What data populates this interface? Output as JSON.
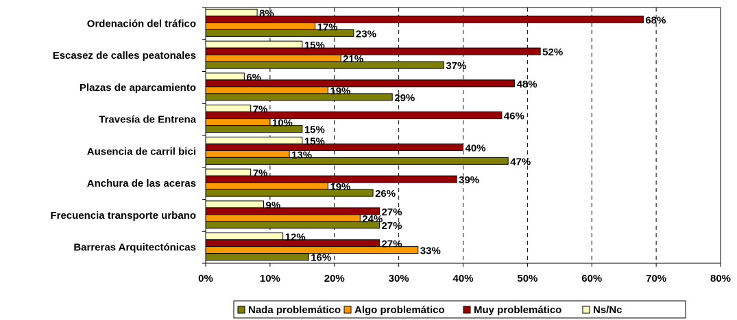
{
  "chart_data": {
    "type": "bar",
    "orientation": "horizontal",
    "categories": [
      "Ordenación del tráfico",
      "Escasez de calles peatonales",
      "Plazas de aparcamiento",
      "Travesía de Entrena",
      "Ausencia de carril bici",
      "Anchura de las aceras",
      "Frecuencia transporte urbano",
      "Barreras Arquitectónicas"
    ],
    "series": [
      {
        "name": "Ns/Nc",
        "color": "#FFFFC0",
        "values": [
          8,
          15,
          6,
          7,
          15,
          7,
          9,
          12
        ]
      },
      {
        "name": "Muy problemático",
        "color": "#990000",
        "values": [
          68,
          52,
          48,
          46,
          40,
          39,
          27,
          27
        ]
      },
      {
        "name": "Algo problemático",
        "color": "#FF9900",
        "values": [
          17,
          21,
          19,
          10,
          13,
          19,
          24,
          33
        ]
      },
      {
        "name": "Nada problemático",
        "color": "#808000",
        "values": [
          23,
          37,
          29,
          15,
          47,
          26,
          27,
          16
        ]
      }
    ],
    "xlim": [
      0,
      80
    ],
    "x_ticks": [
      "0%",
      "10%",
      "20%",
      "30%",
      "40%",
      "50%",
      "60%",
      "70%",
      "80%"
    ],
    "value_suffix": "%",
    "gridlines": "vertical dashed",
    "legend_order": [
      "Nada problemático",
      "Algo problemático",
      "Muy problemático",
      "Ns/Nc"
    ],
    "legend_position": "bottom",
    "title": "",
    "xlabel": "",
    "ylabel": ""
  }
}
